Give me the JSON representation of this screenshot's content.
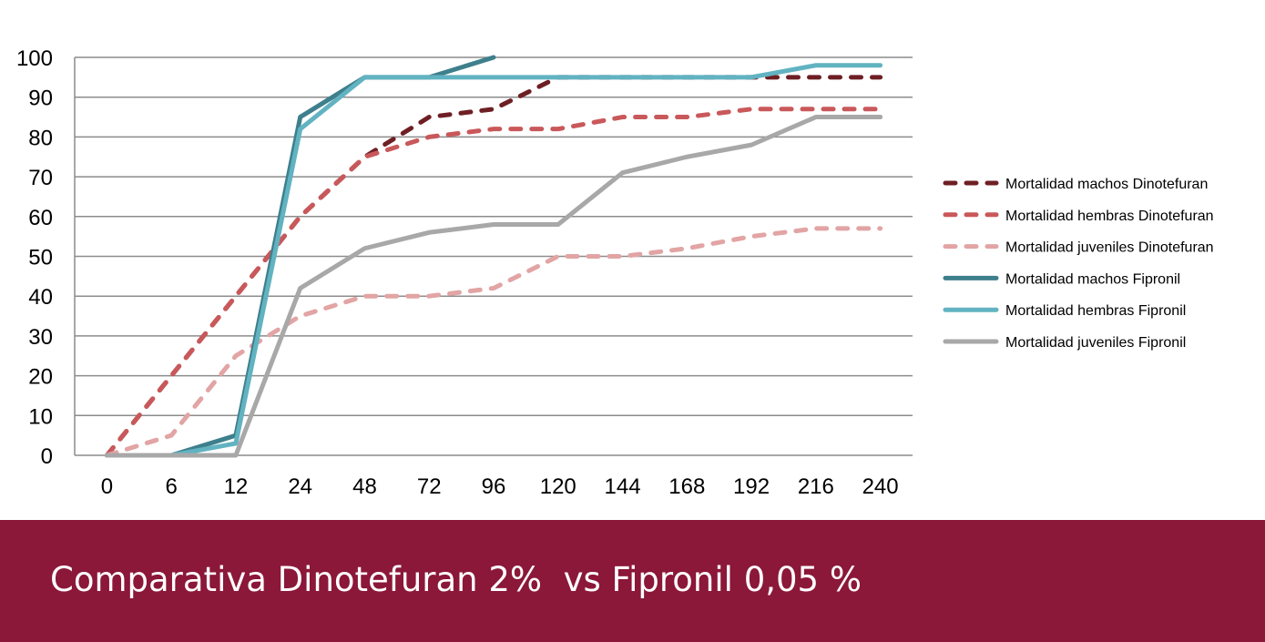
{
  "chart_data": {
    "type": "line",
    "title": "",
    "xlabel": "",
    "ylabel": "",
    "categories": [
      "0",
      "6",
      "12",
      "24",
      "48",
      "72",
      "96",
      "120",
      "144",
      "168",
      "192",
      "216",
      "240"
    ],
    "ylim": [
      0,
      100
    ],
    "yticks": [
      0,
      10,
      20,
      30,
      40,
      50,
      60,
      70,
      80,
      90,
      100
    ],
    "grid": true,
    "legend_position": "right",
    "series": [
      {
        "name": "Mortalidad machos Dinotefuran",
        "color": "#6e1f24",
        "dashed": true,
        "values": [
          0,
          20,
          40,
          60,
          75,
          85,
          87,
          95,
          95,
          95,
          95,
          95,
          95
        ]
      },
      {
        "name": "Mortalidad hembras Dinotefuran",
        "color": "#c9585a",
        "dashed": true,
        "values": [
          0,
          20,
          40,
          60,
          75,
          80,
          82,
          82,
          85,
          85,
          87,
          87,
          87
        ]
      },
      {
        "name": "Mortalidad juveniles Dinotefuran",
        "color": "#e2a4a4",
        "dashed": true,
        "values": [
          0,
          5,
          25,
          35,
          40,
          40,
          42,
          50,
          50,
          52,
          55,
          57,
          57
        ]
      },
      {
        "name": "Mortalidad machos Fipronil",
        "color": "#3e7f8c",
        "dashed": false,
        "values": [
          0,
          0,
          5,
          85,
          95,
          95,
          100,
          null,
          null,
          null,
          null,
          null,
          null
        ]
      },
      {
        "name": "Mortalidad hembras Fipronil",
        "color": "#62b3c1",
        "dashed": false,
        "values": [
          0,
          0,
          3,
          82,
          95,
          95,
          95,
          95,
          95,
          95,
          95,
          98,
          98
        ]
      },
      {
        "name": "Mortalidad juveniles Fipronil",
        "color": "#a8a8a8",
        "dashed": false,
        "values": [
          0,
          0,
          0,
          42,
          52,
          56,
          58,
          58,
          71,
          75,
          78,
          85,
          85
        ]
      }
    ]
  },
  "banner": {
    "title": "Comparativa Dinotefuran 2%  vs Fipronil 0,05 %"
  }
}
